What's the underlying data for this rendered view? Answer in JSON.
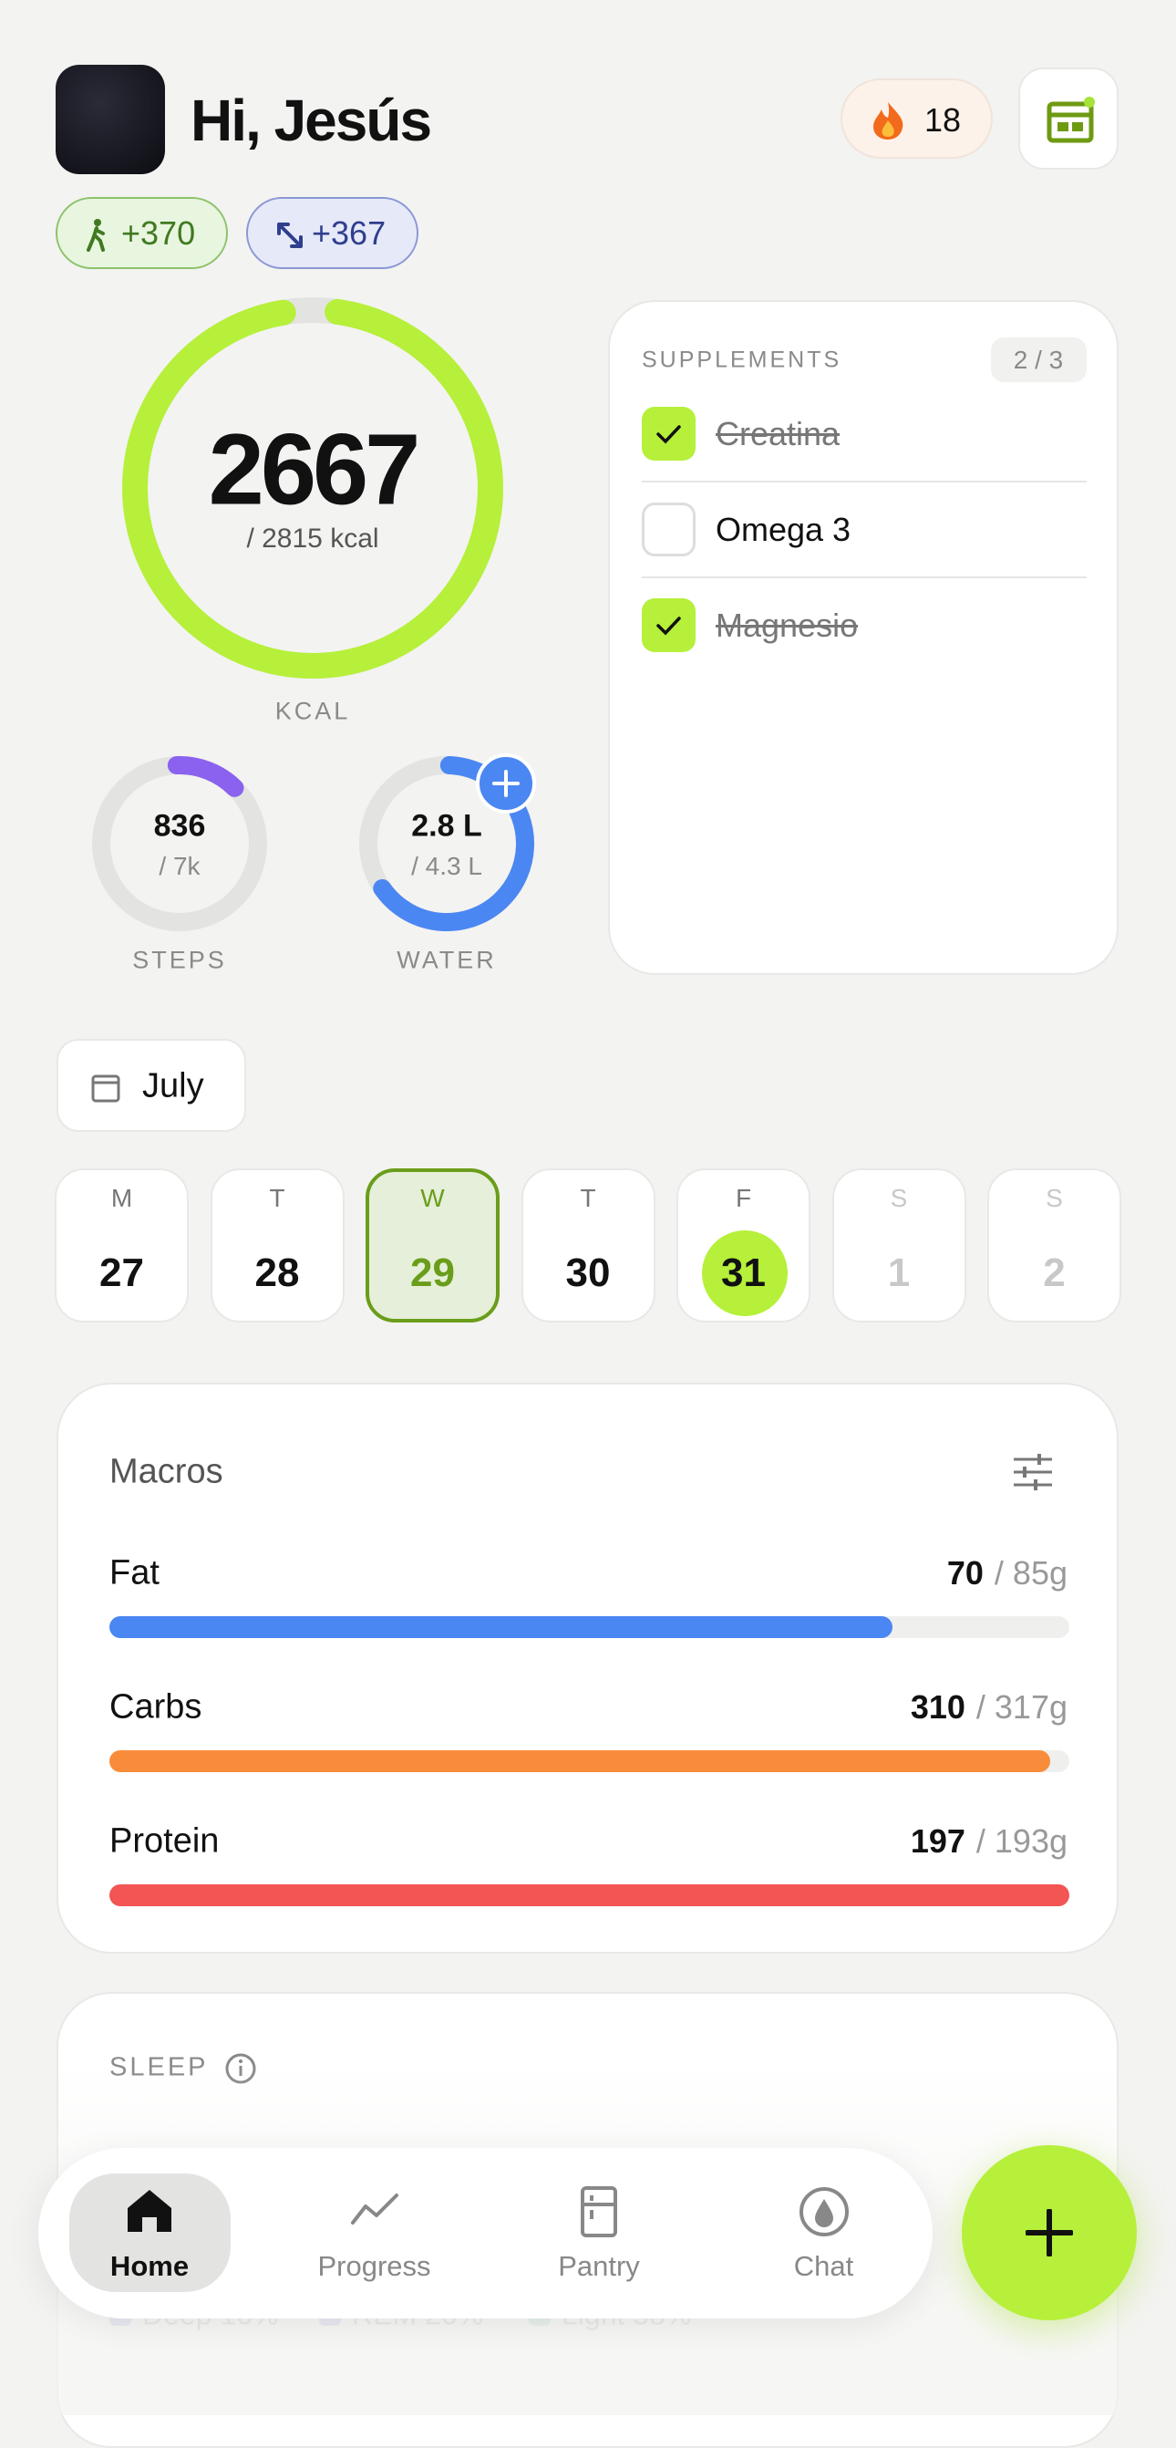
{
  "header": {
    "greeting": "Hi, Jesús",
    "streak": 18,
    "badges": [
      "+370",
      "+367"
    ]
  },
  "calories": {
    "value": 2667,
    "goal": "/ 2815 kcal",
    "label": "KCAL"
  },
  "steps": {
    "value": 836,
    "goal": "/ 7k",
    "label": "STEPS"
  },
  "water": {
    "value": "2.8 L",
    "goal": "/ 4.3 L",
    "label": "WATER"
  },
  "supplements": {
    "title": "SUPPLEMENTS",
    "count": "2 / 3",
    "items": [
      {
        "name": "Creatina",
        "done": true
      },
      {
        "name": "Omega 3",
        "done": false
      },
      {
        "name": "Magnesio",
        "done": true
      }
    ]
  },
  "month": "July",
  "days": [
    {
      "letter": "M",
      "date": 27,
      "state": "past"
    },
    {
      "letter": "T",
      "date": 28,
      "state": "past"
    },
    {
      "letter": "W",
      "date": 29,
      "state": "selected"
    },
    {
      "letter": "T",
      "date": 30,
      "state": "past"
    },
    {
      "letter": "F",
      "date": 31,
      "state": "today"
    },
    {
      "letter": "S",
      "date": 1,
      "state": "future"
    },
    {
      "letter": "S",
      "date": 2,
      "state": "future"
    }
  ],
  "macros": {
    "title": "Macros",
    "items": [
      {
        "name": "Fat",
        "value": 70,
        "target": "/ 85g",
        "color": "#4b87f2"
      },
      {
        "name": "Carbs",
        "value": 310,
        "target": "/ 317g",
        "color": "#f98c3a"
      },
      {
        "name": "Protein",
        "value": 197,
        "target": "/ 193g",
        "color": "#f35454"
      }
    ]
  },
  "sleep": {
    "title": "SLEEP",
    "legend": [
      "Deep 16%",
      "REM 26%",
      "Light 58%"
    ]
  },
  "nav": [
    "Home",
    "Progress",
    "Pantry",
    "Chat"
  ]
}
